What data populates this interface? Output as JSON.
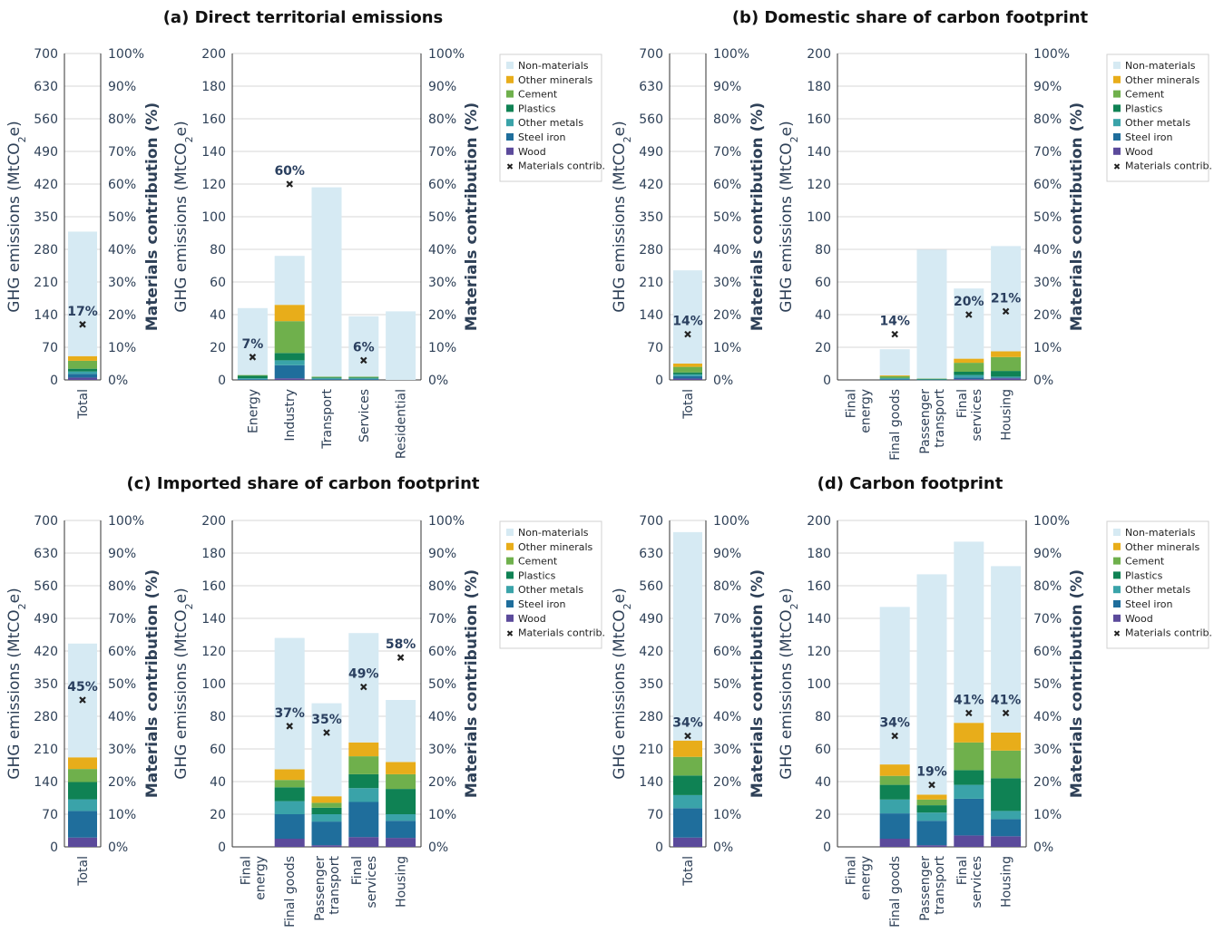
{
  "chart_data": {
    "type": "bar",
    "stacked": true,
    "series_order": [
      "Wood",
      "Steel iron",
      "Other metals",
      "Plastics",
      "Cement",
      "Other minerals",
      "Non-materials"
    ],
    "colors": {
      "Wood": "#5b4a9b",
      "Steel iron": "#1f6e9c",
      "Other metals": "#3aa3a9",
      "Plastics": "#0f8254",
      "Cement": "#6fb04c",
      "Other minerals": "#e8ad1a",
      "Non-materials": "#d6eaf3",
      "Materials contrib.": "#222222"
    },
    "legend": [
      "Non-materials",
      "Other minerals",
      "Cement",
      "Plastics",
      "Other metals",
      "Steel iron",
      "Wood",
      "Materials contrib."
    ],
    "ylabel": "GHG emissions (MtCO2e)",
    "ylabel_right": "Materials contribution (%)",
    "total_ylim": [
      0,
      700
    ],
    "total_ticks": [
      0,
      70,
      140,
      210,
      280,
      350,
      420,
      490,
      560,
      630,
      700
    ],
    "sector_ylim": [
      0,
      200
    ],
    "sector_ticks": [
      0,
      20,
      40,
      60,
      80,
      100,
      120,
      140,
      160,
      180,
      200
    ],
    "pct_ticks": [
      "0%",
      "10%",
      "20%",
      "30%",
      "40%",
      "50%",
      "60%",
      "70%",
      "80%",
      "90%",
      "100%"
    ],
    "panels": [
      {
        "title": "(a) Direct territorial emissions",
        "total": {
          "category": "Total",
          "values": [
            5,
            8,
            5,
            6,
            17,
            10,
            267
          ],
          "contrib": 17
        },
        "categories": [
          "Energy",
          "Industry",
          "Transport",
          "Services",
          "Residential"
        ],
        "stacks": [
          [
            0,
            0.5,
            0.5,
            1.5,
            0.5,
            0,
            41
          ],
          [
            1,
            8,
            3,
            4.5,
            19.5,
            10,
            30
          ],
          [
            0,
            0.5,
            0.5,
            0.5,
            0.5,
            0,
            116
          ],
          [
            0,
            0.5,
            0.5,
            0.5,
            0.5,
            0,
            37
          ],
          [
            0,
            0,
            0,
            0,
            0,
            0,
            42
          ]
        ],
        "contrib": [
          7,
          60,
          null,
          6,
          null
        ]
      },
      {
        "title": "(b) Domestic share of carbon footprint",
        "total": {
          "category": "Total",
          "values": [
            3,
            5,
            4,
            4,
            12,
            7,
            200
          ],
          "contrib": 14
        },
        "categories": [
          "Final\nenergy",
          "Final goods",
          "Passenger\ntransport",
          "Final\nservices",
          "Housing"
        ],
        "stacks": [
          [
            0,
            0,
            0,
            0,
            0,
            0,
            0
          ],
          [
            0,
            0.5,
            0.5,
            0.3,
            1,
            0.5,
            16
          ],
          [
            0,
            0.2,
            0.2,
            0.2,
            0.2,
            0,
            79
          ],
          [
            0.5,
            1,
            1.5,
            2,
            5.5,
            2.5,
            43
          ],
          [
            1,
            0.5,
            0.5,
            3.5,
            8.5,
            3.5,
            64.5
          ]
        ],
        "contrib": [
          null,
          14,
          null,
          20,
          21
        ]
      },
      {
        "title": "(c) Imported share of carbon footprint",
        "total": {
          "category": "Total",
          "values": [
            20,
            57,
            25,
            37,
            28,
            25,
            244
          ],
          "contrib": 45
        },
        "categories": [
          "Final\nenergy",
          "Final goods",
          "Passenger\ntransport",
          "Final\nservices",
          "Housing"
        ],
        "stacks": [
          [
            0,
            0,
            0,
            0,
            0,
            0,
            0
          ],
          [
            5,
            15,
            8,
            8.5,
            4.5,
            6.5,
            80.5
          ],
          [
            1,
            14.5,
            4.5,
            4,
            3,
            4,
            57
          ],
          [
            6,
            21.5,
            8.5,
            8.5,
            11,
            8.5,
            67
          ],
          [
            5.5,
            10.5,
            4,
            15.5,
            9,
            7.5,
            38
          ]
        ],
        "contrib": [
          null,
          37,
          35,
          49,
          58
        ]
      },
      {
        "title": "(d) Carbon footprint",
        "total": {
          "category": "Total",
          "values": [
            20,
            63,
            28,
            42,
            40,
            35,
            447
          ],
          "contrib": 34
        },
        "categories": [
          "Final\nenergy",
          "Final goods",
          "Passenger\ntransport",
          "Final\nservices",
          "Housing"
        ],
        "stacks": [
          [
            0,
            0,
            0,
            0,
            0,
            0,
            0
          ],
          [
            5,
            15.5,
            8.5,
            9,
            5.5,
            7,
            96.5
          ],
          [
            1,
            15,
            5,
            4.5,
            3.5,
            3,
            135
          ],
          [
            7,
            22.5,
            8.5,
            9,
            17,
            12,
            111
          ],
          [
            6.5,
            10.5,
            5,
            20,
            17,
            11,
            102
          ]
        ],
        "contrib": [
          null,
          34,
          19,
          41,
          41
        ]
      }
    ]
  }
}
